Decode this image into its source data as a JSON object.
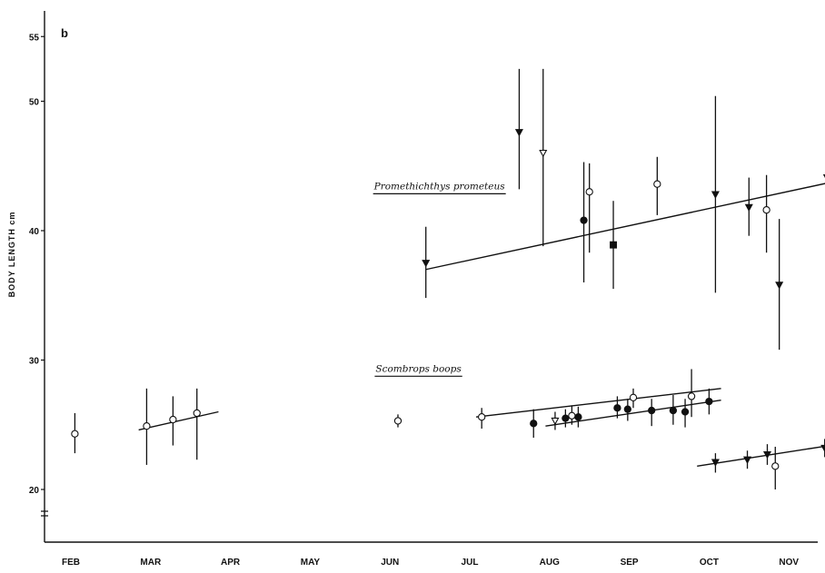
{
  "chart_data": {
    "type": "scatter",
    "panel_label": "b",
    "ylabel": "BODY LENGTH cm",
    "ylim": [
      17,
      55
    ],
    "y_ticks": [
      20,
      30,
      40,
      50,
      55
    ],
    "y_tick_labels": [
      "20",
      "30",
      "40",
      "50",
      "55"
    ],
    "x_categories": [
      "FEB",
      "MAR",
      "APR",
      "MAY",
      "JUN",
      "JUL",
      "AUG",
      "SEP",
      "OCT",
      "NOV"
    ],
    "x_tick_labels": [
      "FEB",
      "MAR",
      "APR",
      "MAY",
      "JUN",
      "JUL",
      "AUG",
      "SEP",
      "OCT",
      "NOV"
    ],
    "xlim": [
      -0.45,
      9.6
    ],
    "annotations": [
      {
        "text": "Promethichthys prometeus",
        "x": 3.8,
        "y": 43.2
      },
      {
        "text": "Scombrops boops",
        "x": 3.82,
        "y": 29.1
      }
    ],
    "series": [
      {
        "species": "Promethichthys prometeus",
        "points": [
          {
            "x": 4.45,
            "y": 37.5,
            "low": 34.8,
            "high": 40.3,
            "marker": "tri-down-filled"
          },
          {
            "x": 5.62,
            "y": 47.6,
            "low": 43.2,
            "high": 52.5,
            "marker": "tri-down-filled"
          },
          {
            "x": 5.92,
            "y": 46.0,
            "low": 38.8,
            "high": 52.5,
            "marker": "tri-down-open"
          },
          {
            "x": 6.43,
            "y": 40.8,
            "low": 36.0,
            "high": 45.3,
            "marker": "circle-filled"
          },
          {
            "x": 6.5,
            "y": 43.0,
            "low": 38.3,
            "high": 45.2,
            "marker": "circle-open"
          },
          {
            "x": 6.8,
            "y": 38.9,
            "low": 35.5,
            "high": 42.3,
            "marker": "square-filled"
          },
          {
            "x": 7.35,
            "y": 43.6,
            "low": 41.2,
            "high": 45.7,
            "marker": "circle-open"
          },
          {
            "x": 8.08,
            "y": 42.8,
            "low": 35.2,
            "high": 50.4,
            "marker": "tri-down-filled"
          },
          {
            "x": 8.5,
            "y": 41.8,
            "low": 39.6,
            "high": 44.1,
            "marker": "tri-down-filled"
          },
          {
            "x": 8.72,
            "y": 41.6,
            "low": 38.3,
            "high": 44.3,
            "marker": "circle-open"
          },
          {
            "x": 8.88,
            "y": 35.8,
            "low": 30.8,
            "high": 40.9,
            "marker": "tri-down-filled"
          },
          {
            "x": 9.48,
            "y": 44.1,
            "low": 42.0,
            "high": 46.1,
            "marker": "tri-down-filled"
          }
        ],
        "trendlines": [
          {
            "x": [
              4.45,
              9.65
            ],
            "y": [
              37.0,
              43.9
            ]
          }
        ]
      },
      {
        "species": "Scombrops boops",
        "points": [
          {
            "x": 0.05,
            "y": 24.3,
            "low": 22.8,
            "high": 25.9,
            "marker": "circle-open"
          },
          {
            "x": 0.95,
            "y": 24.9,
            "low": 21.9,
            "high": 27.8,
            "marker": "circle-open"
          },
          {
            "x": 1.28,
            "y": 25.4,
            "low": 23.4,
            "high": 27.2,
            "marker": "circle-open"
          },
          {
            "x": 1.58,
            "y": 25.9,
            "low": 22.3,
            "high": 27.8,
            "marker": "circle-open"
          },
          {
            "x": 4.1,
            "y": 25.3,
            "low": 24.8,
            "high": 25.8,
            "marker": "circle-open"
          },
          {
            "x": 5.15,
            "y": 25.6,
            "low": 24.7,
            "high": 26.3,
            "marker": "circle-open"
          },
          {
            "x": 5.8,
            "y": 25.1,
            "low": 24.0,
            "high": 26.2,
            "marker": "circle-filled"
          },
          {
            "x": 6.07,
            "y": 25.3,
            "low": 24.6,
            "high": 26.0,
            "marker": "tri-down-open"
          },
          {
            "x": 6.2,
            "y": 25.5,
            "low": 24.8,
            "high": 26.2,
            "marker": "circle-filled"
          },
          {
            "x": 6.28,
            "y": 25.7,
            "low": 25.0,
            "high": 26.5,
            "marker": "circle-open"
          },
          {
            "x": 6.36,
            "y": 25.6,
            "low": 24.8,
            "high": 26.4,
            "marker": "circle-filled"
          },
          {
            "x": 6.85,
            "y": 26.3,
            "low": 25.5,
            "high": 27.2,
            "marker": "circle-filled"
          },
          {
            "x": 6.98,
            "y": 26.2,
            "low": 25.3,
            "high": 27.0,
            "marker": "circle-filled"
          },
          {
            "x": 7.05,
            "y": 27.1,
            "low": 26.3,
            "high": 27.8,
            "marker": "circle-open"
          },
          {
            "x": 7.28,
            "y": 26.1,
            "low": 24.9,
            "high": 27.0,
            "marker": "circle-filled"
          },
          {
            "x": 7.55,
            "y": 26.1,
            "low": 25.0,
            "high": 27.3,
            "marker": "circle-filled"
          },
          {
            "x": 7.7,
            "y": 26.0,
            "low": 24.8,
            "high": 27.0,
            "marker": "circle-filled"
          },
          {
            "x": 7.78,
            "y": 27.2,
            "low": 25.6,
            "high": 29.3,
            "marker": "circle-open"
          },
          {
            "x": 8.0,
            "y": 26.8,
            "low": 25.8,
            "high": 27.8,
            "marker": "circle-filled"
          },
          {
            "x": 8.08,
            "y": 22.1,
            "low": 21.3,
            "high": 22.8,
            "marker": "tri-down-filled"
          },
          {
            "x": 8.48,
            "y": 22.3,
            "low": 21.6,
            "high": 23.0,
            "marker": "tri-down-filled"
          },
          {
            "x": 8.73,
            "y": 22.7,
            "low": 21.9,
            "high": 23.5,
            "marker": "tri-down-filled"
          },
          {
            "x": 8.83,
            "y": 21.8,
            "low": 20.0,
            "high": 23.3,
            "marker": "circle-open"
          },
          {
            "x": 9.45,
            "y": 23.2,
            "low": 22.5,
            "high": 23.9,
            "marker": "tri-down-filled"
          }
        ],
        "trendlines": [
          {
            "x": [
              0.85,
              1.85
            ],
            "y": [
              24.6,
              26.0
            ]
          },
          {
            "x": [
              5.08,
              8.15
            ],
            "y": [
              25.6,
              27.8
            ]
          },
          {
            "x": [
              5.95,
              8.15
            ],
            "y": [
              24.9,
              26.9
            ]
          },
          {
            "x": [
              7.85,
              9.62
            ],
            "y": [
              21.8,
              23.5
            ]
          }
        ]
      }
    ]
  }
}
